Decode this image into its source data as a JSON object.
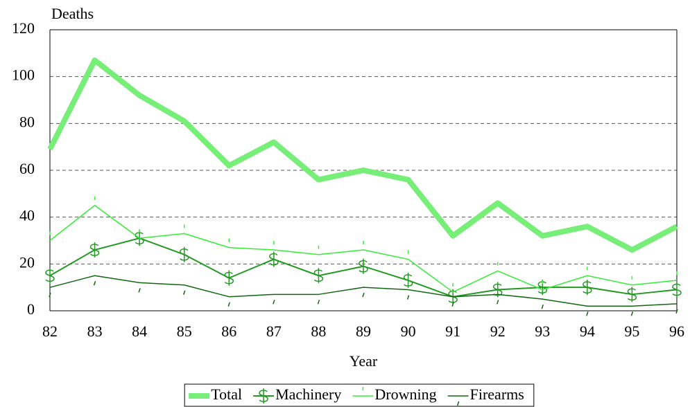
{
  "chart_data": {
    "type": "line",
    "y_label": "Deaths",
    "x_label": "Year",
    "categories": [
      "82",
      "83",
      "84",
      "85",
      "86",
      "87",
      "88",
      "89",
      "90",
      "91",
      "92",
      "93",
      "94",
      "95",
      "96"
    ],
    "series": [
      {
        "name": "Total",
        "color": "#77ee77",
        "values": [
          69,
          107,
          92,
          81,
          62,
          72,
          56,
          60,
          56,
          32,
          46,
          32,
          36,
          26,
          36
        ]
      },
      {
        "name": "Machinery",
        "color": "#229922",
        "marker": "dollar",
        "values": [
          15,
          26,
          31,
          24,
          14,
          22,
          15,
          19,
          13,
          6,
          9,
          10,
          10,
          7,
          9
        ]
      },
      {
        "name": "Drowning",
        "color": "#33ee33",
        "marker": "tick-up",
        "values": [
          30,
          45,
          31,
          33,
          27,
          26,
          24,
          26,
          22,
          8,
          17,
          9,
          15,
          11,
          13
        ]
      },
      {
        "name": "Firearms",
        "color": "#116611",
        "marker": "tick-down",
        "values": [
          10,
          15,
          12,
          11,
          6,
          7,
          7,
          10,
          9,
          6,
          7,
          5,
          2,
          2,
          3
        ]
      }
    ],
    "ylim": [
      0,
      120
    ],
    "yticks": [
      0,
      20,
      40,
      60,
      80,
      100,
      120
    ],
    "grid": true
  }
}
